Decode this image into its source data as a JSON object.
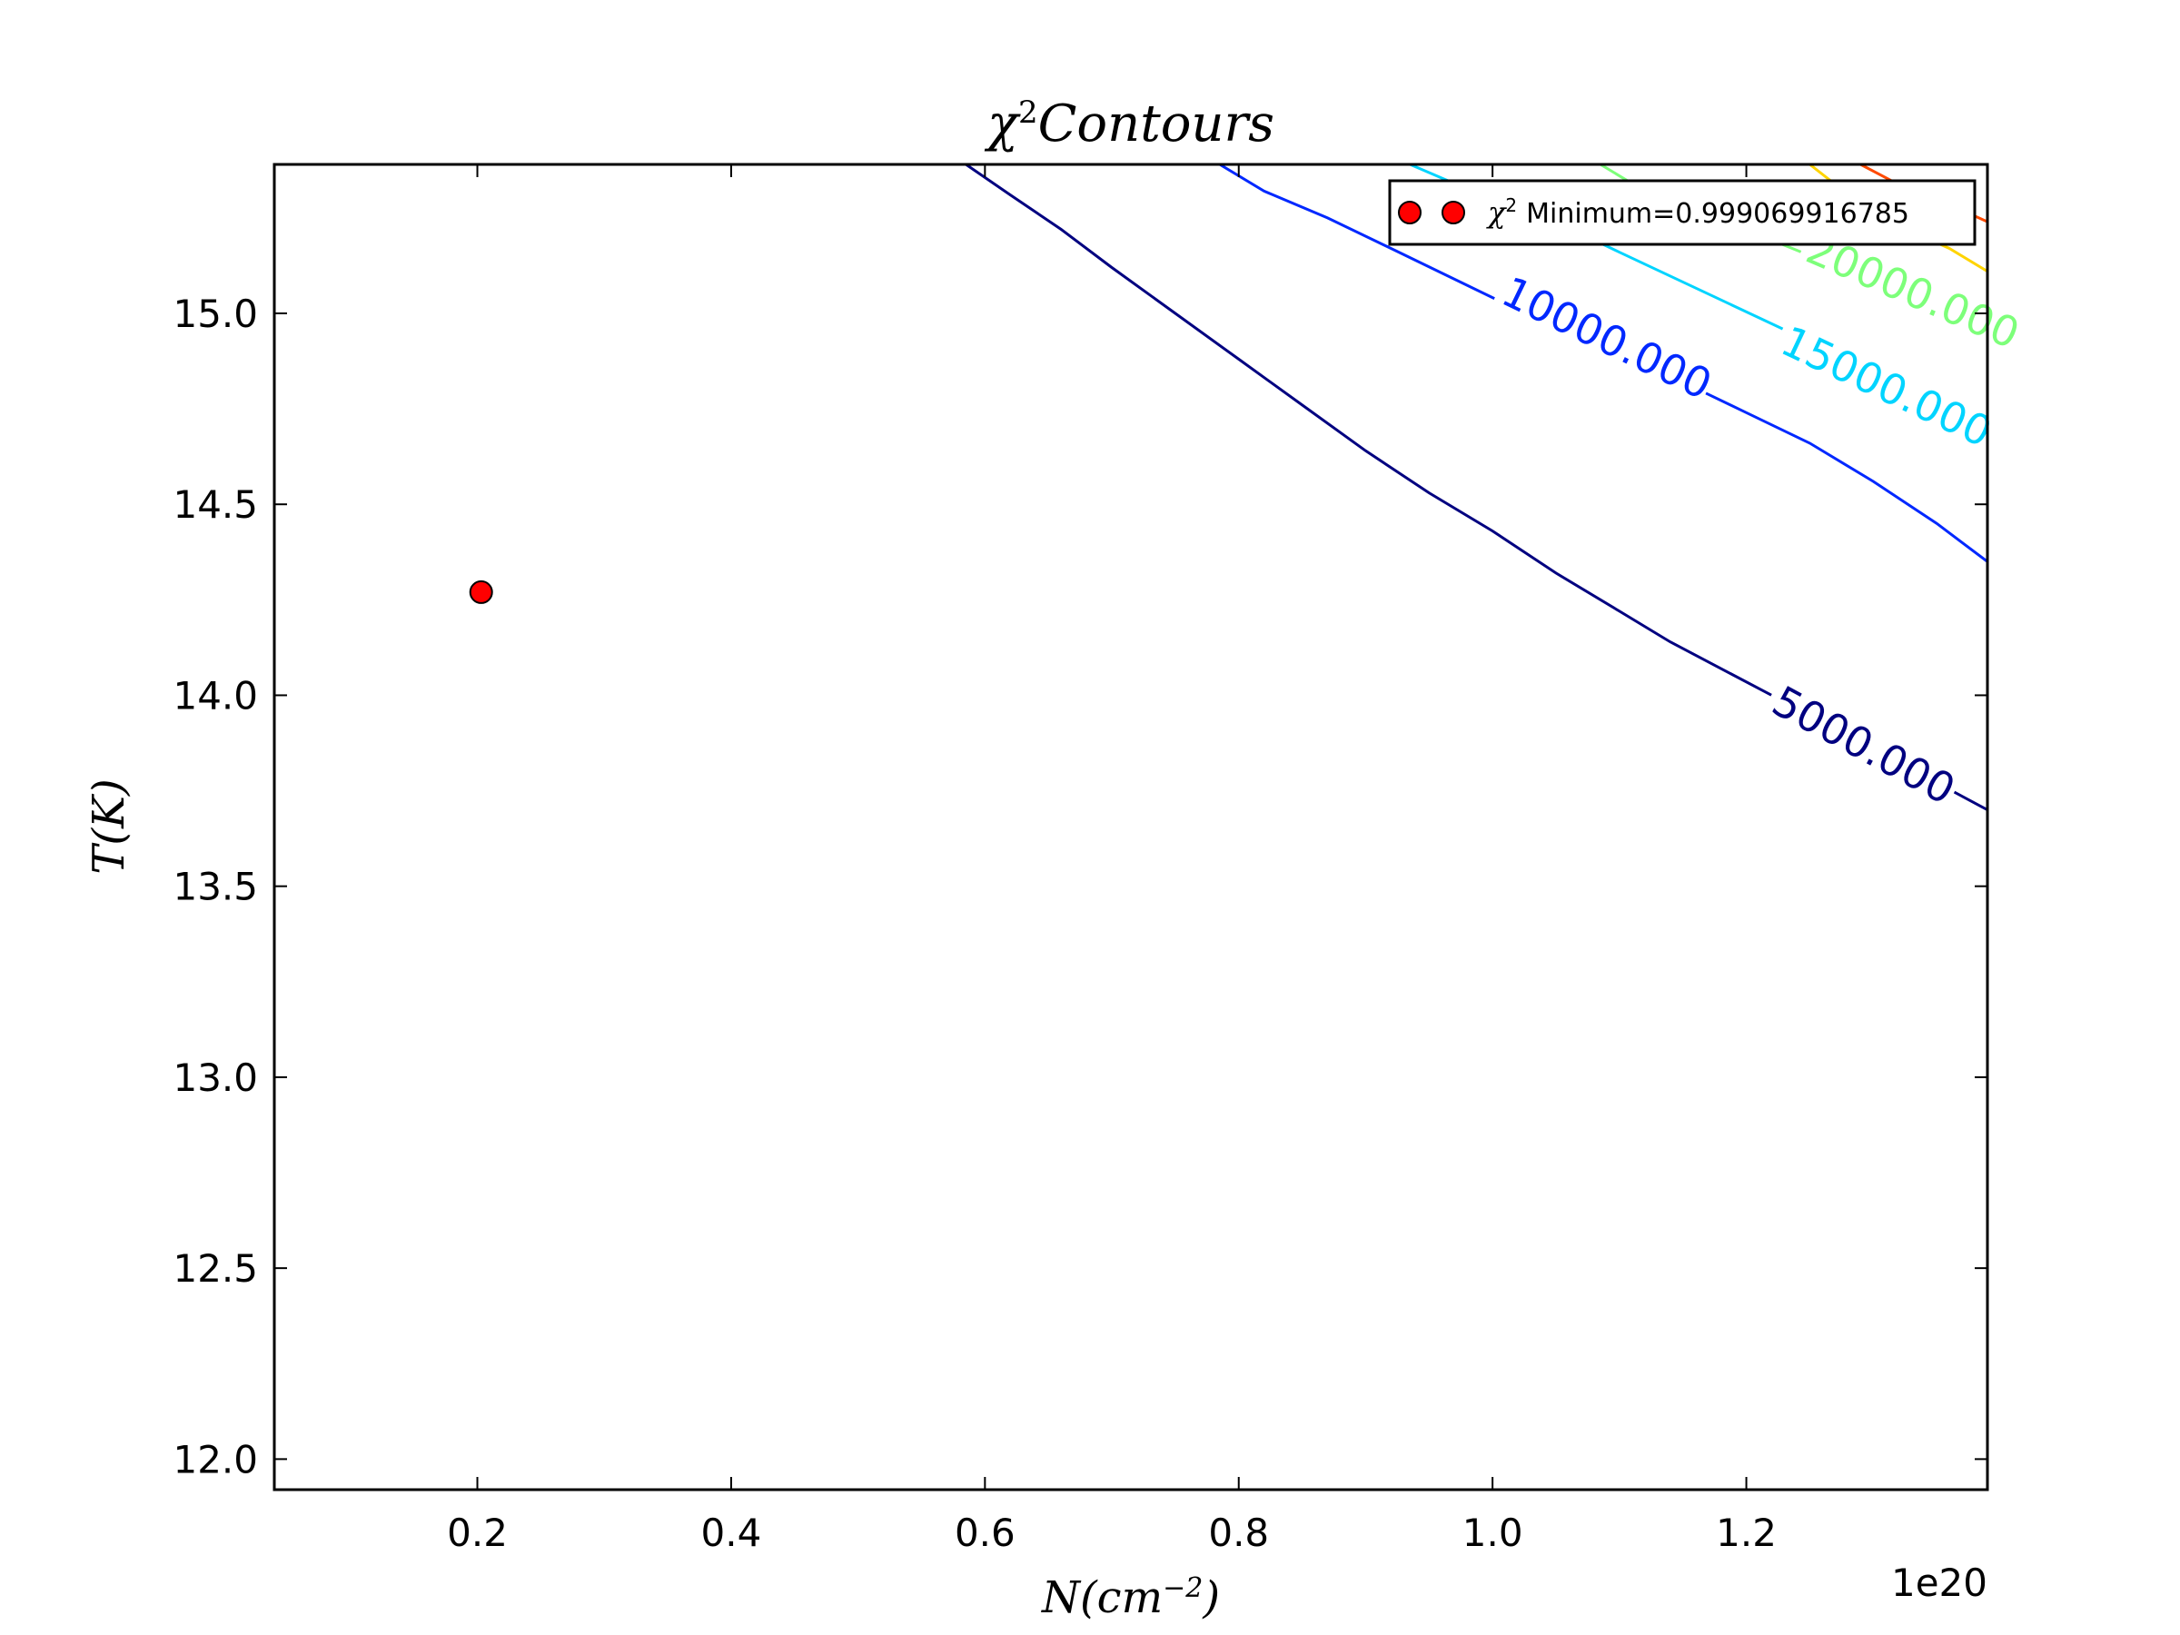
{
  "chart_data": {
    "type": "contour",
    "title_parts": {
      "symbol": "χ",
      "sup": "2",
      "text": "Contours"
    },
    "xlabel_parts": {
      "base": "N(cm",
      "sup": "−2",
      "close": ")"
    },
    "ylabel_parts": {
      "text": "T(K)"
    },
    "x_offset_text": "1e20",
    "xlim": [
      0.04,
      1.39
    ],
    "ylim": [
      11.92,
      15.39
    ],
    "x_ticks": [
      0.2,
      0.4,
      0.6,
      0.8,
      1.0,
      1.2
    ],
    "x_tick_labels": [
      "0.2",
      "0.4",
      "0.6",
      "0.8",
      "1.0",
      "1.2"
    ],
    "y_ticks": [
      12.0,
      12.5,
      13.0,
      13.5,
      14.0,
      14.5,
      15.0
    ],
    "y_tick_labels": [
      "12.0",
      "12.5",
      "13.0",
      "13.5",
      "14.0",
      "14.5",
      "15.0"
    ],
    "minimum_point": {
      "x": 0.203,
      "y": 14.27,
      "color": "#ff0000"
    },
    "legend": {
      "placement": "top-right",
      "symbol": "χ",
      "sup": "2",
      "label": "Minimum=0.999069916785"
    },
    "contours": [
      {
        "level": 5000,
        "label": "5000.000",
        "color": "#000080",
        "points": [
          [
            0.585,
            15.39
          ],
          [
            0.62,
            15.31
          ],
          [
            0.66,
            15.22
          ],
          [
            0.7,
            15.12
          ],
          [
            0.75,
            15.0
          ],
          [
            0.8,
            14.88
          ],
          [
            0.85,
            14.76
          ],
          [
            0.9,
            14.64
          ],
          [
            0.95,
            14.53
          ],
          [
            1.0,
            14.43
          ],
          [
            1.05,
            14.32
          ],
          [
            1.1,
            14.22
          ],
          [
            1.14,
            14.14
          ],
          [
            1.3,
            13.86
          ],
          [
            1.39,
            13.7
          ]
        ],
        "label_at": [
          1.218,
          13.96
        ]
      },
      {
        "level": 10000,
        "label": "10000.000",
        "color": "#0028ff",
        "points": [
          [
            0.785,
            15.39
          ],
          [
            0.82,
            15.32
          ],
          [
            0.87,
            15.25
          ],
          [
            0.92,
            15.17
          ],
          [
            1.1,
            14.88
          ],
          [
            1.15,
            14.82
          ],
          [
            1.2,
            14.74
          ],
          [
            1.25,
            14.66
          ],
          [
            1.3,
            14.56
          ],
          [
            1.35,
            14.45
          ],
          [
            1.39,
            14.35
          ]
        ],
        "label_at": [
          1.005,
          15.03
        ]
      },
      {
        "level": 15000,
        "label": "15000.000",
        "color": "#00d4ff",
        "points": [
          [
            0.935,
            15.39
          ],
          [
            0.97,
            15.34
          ],
          [
            1.05,
            15.24
          ],
          [
            1.1,
            15.16
          ],
          [
            1.35,
            14.77
          ],
          [
            1.39,
            14.69
          ]
        ],
        "label_at": [
          1.225,
          14.9
        ]
      },
      {
        "level": 20000,
        "label": "20000.000",
        "color": "#7dff7a",
        "points": [
          [
            1.085,
            15.39
          ],
          [
            1.11,
            15.34
          ],
          [
            1.355,
            15.01
          ],
          [
            1.39,
            14.94
          ]
        ],
        "label_at": [
          1.245,
          15.14
        ],
        "label_clip": "legend"
      },
      {
        "level": 25000,
        "label": "",
        "color": "#ffd400",
        "points": [
          [
            1.25,
            15.39
          ],
          [
            1.3,
            15.26
          ],
          [
            1.36,
            15.17
          ],
          [
            1.39,
            15.11
          ]
        ]
      },
      {
        "level": 30000,
        "label": "",
        "color": "#ff4a00",
        "points": [
          [
            1.29,
            15.39
          ],
          [
            1.33,
            15.32
          ],
          [
            1.37,
            15.27
          ],
          [
            1.39,
            15.24
          ]
        ]
      }
    ]
  }
}
